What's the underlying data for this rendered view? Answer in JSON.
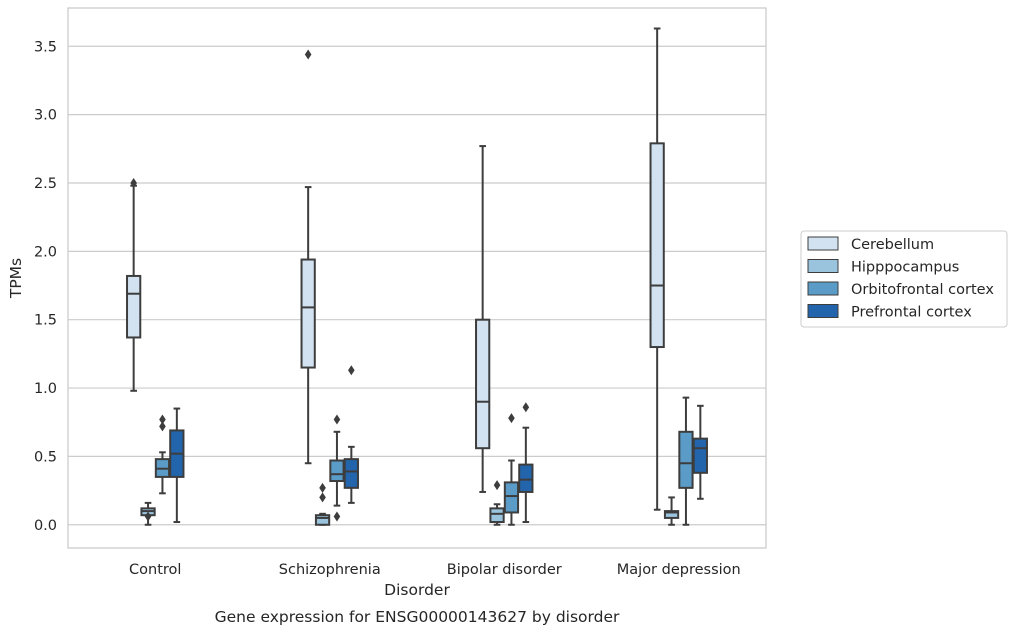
{
  "chart_data": {
    "type": "box",
    "title": "",
    "caption": "Gene expression for ENSG00000143627 by disorder",
    "xlabel": "Disorder",
    "ylabel": "TPMs",
    "ylim": [
      -0.17,
      3.78
    ],
    "yticks": [
      "0.0",
      "0.5",
      "1.0",
      "1.5",
      "2.0",
      "2.5",
      "3.0",
      "3.5"
    ],
    "grid": "horizontal",
    "legend_position": "right",
    "categories": [
      "Control",
      "Schizophrenia",
      "Bipolar disorder",
      "Major depression"
    ],
    "series": [
      {
        "name": "Cerebellum",
        "color": "#d3e2f1",
        "boxes": [
          {
            "whislo": 0.98,
            "q1": 1.37,
            "med": 1.69,
            "q3": 1.82,
            "whishi": 2.48,
            "fliers": [
              2.5
            ]
          },
          {
            "whislo": 0.45,
            "q1": 1.15,
            "med": 1.59,
            "q3": 1.94,
            "whishi": 2.47,
            "fliers": [
              3.44
            ]
          },
          {
            "whislo": 0.24,
            "q1": 0.56,
            "med": 0.9,
            "q3": 1.5,
            "whishi": 2.77,
            "fliers": []
          },
          {
            "whislo": 0.11,
            "q1": 1.3,
            "med": 1.75,
            "q3": 2.79,
            "whishi": 3.63,
            "fliers": []
          }
        ]
      },
      {
        "name": "Hipppocampus",
        "color": "#9ac3de",
        "boxes": [
          {
            "whislo": 0.0,
            "q1": 0.07,
            "med": 0.1,
            "q3": 0.12,
            "whishi": 0.16,
            "fliers": [
              0.06
            ]
          },
          {
            "whislo": 0.0,
            "q1": 0.0,
            "med": 0.05,
            "q3": 0.07,
            "whishi": 0.08,
            "fliers": [
              0.2,
              0.27
            ]
          },
          {
            "whislo": 0.0,
            "q1": 0.02,
            "med": 0.08,
            "q3": 0.12,
            "whishi": 0.15,
            "fliers": [
              0.29
            ]
          },
          {
            "whislo": 0.0,
            "q1": 0.05,
            "med": 0.09,
            "q3": 0.1,
            "whishi": 0.2,
            "fliers": []
          }
        ]
      },
      {
        "name": "Orbitofrontal cortex",
        "color": "#5a9bc8",
        "boxes": [
          {
            "whislo": 0.23,
            "q1": 0.35,
            "med": 0.41,
            "q3": 0.48,
            "whishi": 0.53,
            "fliers": [
              0.72,
              0.77
            ]
          },
          {
            "whislo": 0.14,
            "q1": 0.32,
            "med": 0.37,
            "q3": 0.47,
            "whishi": 0.68,
            "fliers": [
              0.06,
              0.77
            ]
          },
          {
            "whislo": 0.0,
            "q1": 0.09,
            "med": 0.21,
            "q3": 0.31,
            "whishi": 0.47,
            "fliers": [
              0.78
            ]
          },
          {
            "whislo": 0.0,
            "q1": 0.27,
            "med": 0.45,
            "q3": 0.68,
            "whishi": 0.93,
            "fliers": []
          }
        ]
      },
      {
        "name": "Prefrontal cortex",
        "color": "#2265ac",
        "boxes": [
          {
            "whislo": 0.02,
            "q1": 0.35,
            "med": 0.52,
            "q3": 0.69,
            "whishi": 0.85,
            "fliers": []
          },
          {
            "whislo": 0.16,
            "q1": 0.27,
            "med": 0.39,
            "q3": 0.48,
            "whishi": 0.57,
            "fliers": [
              1.13
            ]
          },
          {
            "whislo": 0.02,
            "q1": 0.24,
            "med": 0.33,
            "q3": 0.44,
            "whishi": 0.71,
            "fliers": [
              0.86
            ]
          },
          {
            "whislo": 0.19,
            "q1": 0.38,
            "med": 0.56,
            "q3": 0.63,
            "whishi": 0.87,
            "fliers": []
          }
        ]
      }
    ]
  },
  "colors": {
    "grid": "#cccccc",
    "frame": "#cccccc",
    "line": "#3d3d3d",
    "text": "#262626"
  }
}
